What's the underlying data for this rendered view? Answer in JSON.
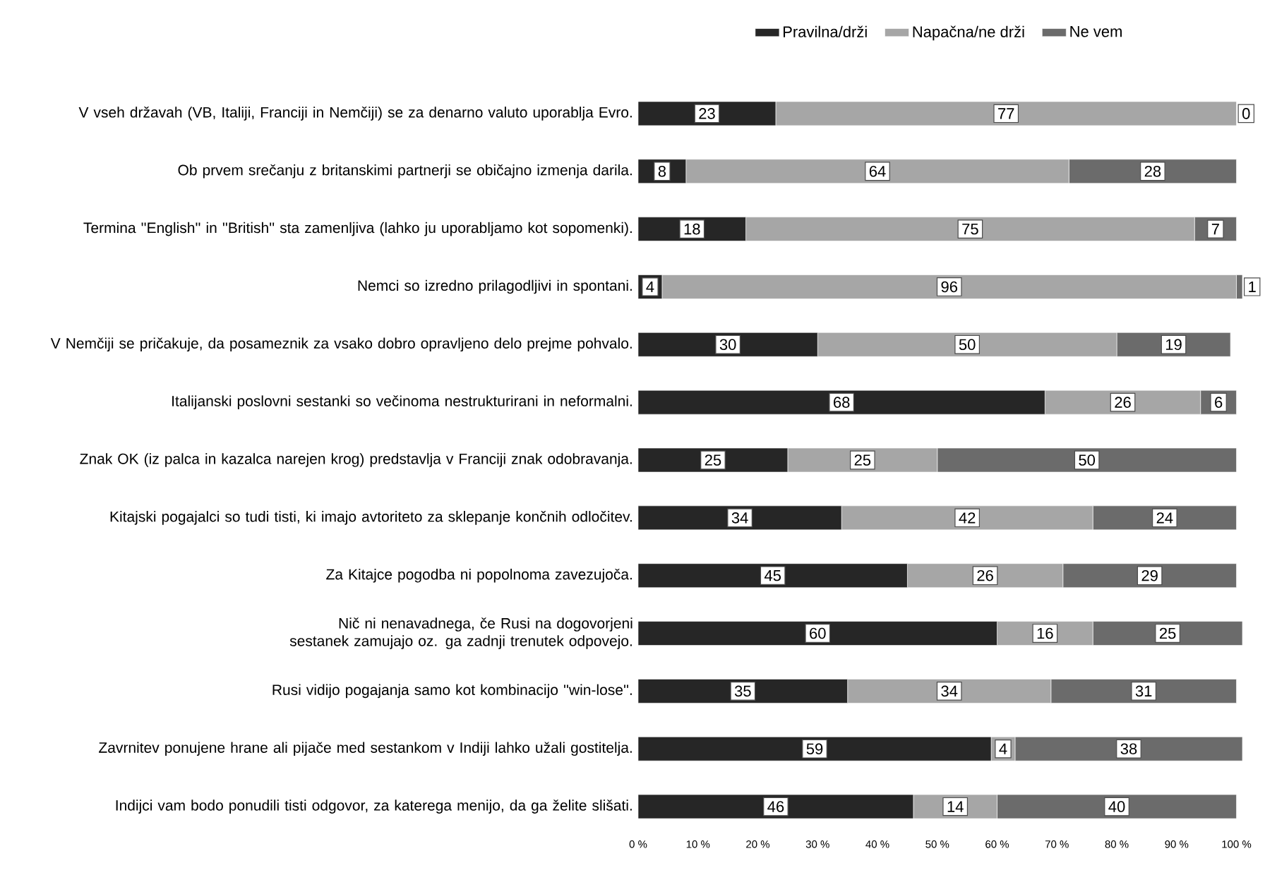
{
  "chart_data": {
    "type": "bar",
    "orientation": "horizontal",
    "stacked": true,
    "data_labels": true,
    "legend": "top",
    "grid": false,
    "categories": [
      "V vseh državah (VB, Italiji, Franciji in Nemčiji) se za denarno valuto uporablja Evro.",
      "Ob prvem srečanju z britanskimi partnerji se običajno izmenja darila.",
      "Termina ''English'' in ''British'' sta zamenljiva (lahko ju uporabljamo kot sopomenki).",
      "Nemci so izredno prilagodljivi in spontani.",
      "V Nemčiji se pričakuje, da posameznik za vsako dobro opravljeno delo prejme pohvalo.",
      "Italijanski poslovni sestanki so večinoma nestrukturirani in neformalni.",
      "Znak OK (iz palca in kazalca narejen krog) predstavlja v Franciji znak odobravanja.",
      "Kitajski pogajalci so tudi tisti, ki imajo avtoriteto za sklepanje končnih odločitev.",
      "Za Kitajce pogodba ni popolnoma zavezujoča.",
      "Nič ni nenavadnega, če Rusi na dogovorjeni sestanek zamujajo oz. ga zadnji trenutek odpovejo.",
      "Rusi vidijo pogajanja samo kot kombinacijo ''win-lose''.",
      "Zavrnitev ponujene hrane ali pijače med sestankom v Indiji lahko užali gostitelja.",
      "Indijci vam bodo ponudili tisti odgovor, za katerega menijo, da ga želite slišati."
    ],
    "series": [
      {
        "name": "Pravilna/drži",
        "color": "#262626",
        "values": [
          23,
          8,
          18,
          4,
          30,
          68,
          25,
          34,
          45,
          60,
          35,
          59,
          46
        ]
      },
      {
        "name": "Napačna/ne drži",
        "color": "#a6a6a6",
        "values": [
          77,
          64,
          75,
          96,
          50,
          26,
          25,
          42,
          26,
          16,
          34,
          4,
          14
        ]
      },
      {
        "name": "Ne vem",
        "color": "#6b6b6b",
        "values": [
          0,
          28,
          7,
          1,
          19,
          6,
          50,
          24,
          29,
          25,
          31,
          38,
          40
        ]
      }
    ],
    "xlim": [
      0,
      101
    ],
    "xticks": [
      {
        "value": 0,
        "label": "0 %"
      },
      {
        "value": 10,
        "label": "10 %"
      },
      {
        "value": 20,
        "label": "20 %"
      },
      {
        "value": 30,
        "label": "30 %"
      },
      {
        "value": 40,
        "label": "40 %"
      },
      {
        "value": 50,
        "label": "50 %"
      },
      {
        "value": 60,
        "label": "60 %"
      },
      {
        "value": 70,
        "label": "70 %"
      },
      {
        "value": 80,
        "label": "80 %"
      },
      {
        "value": 90,
        "label": "90 %"
      },
      {
        "value": 100,
        "label": "100 %"
      }
    ]
  }
}
